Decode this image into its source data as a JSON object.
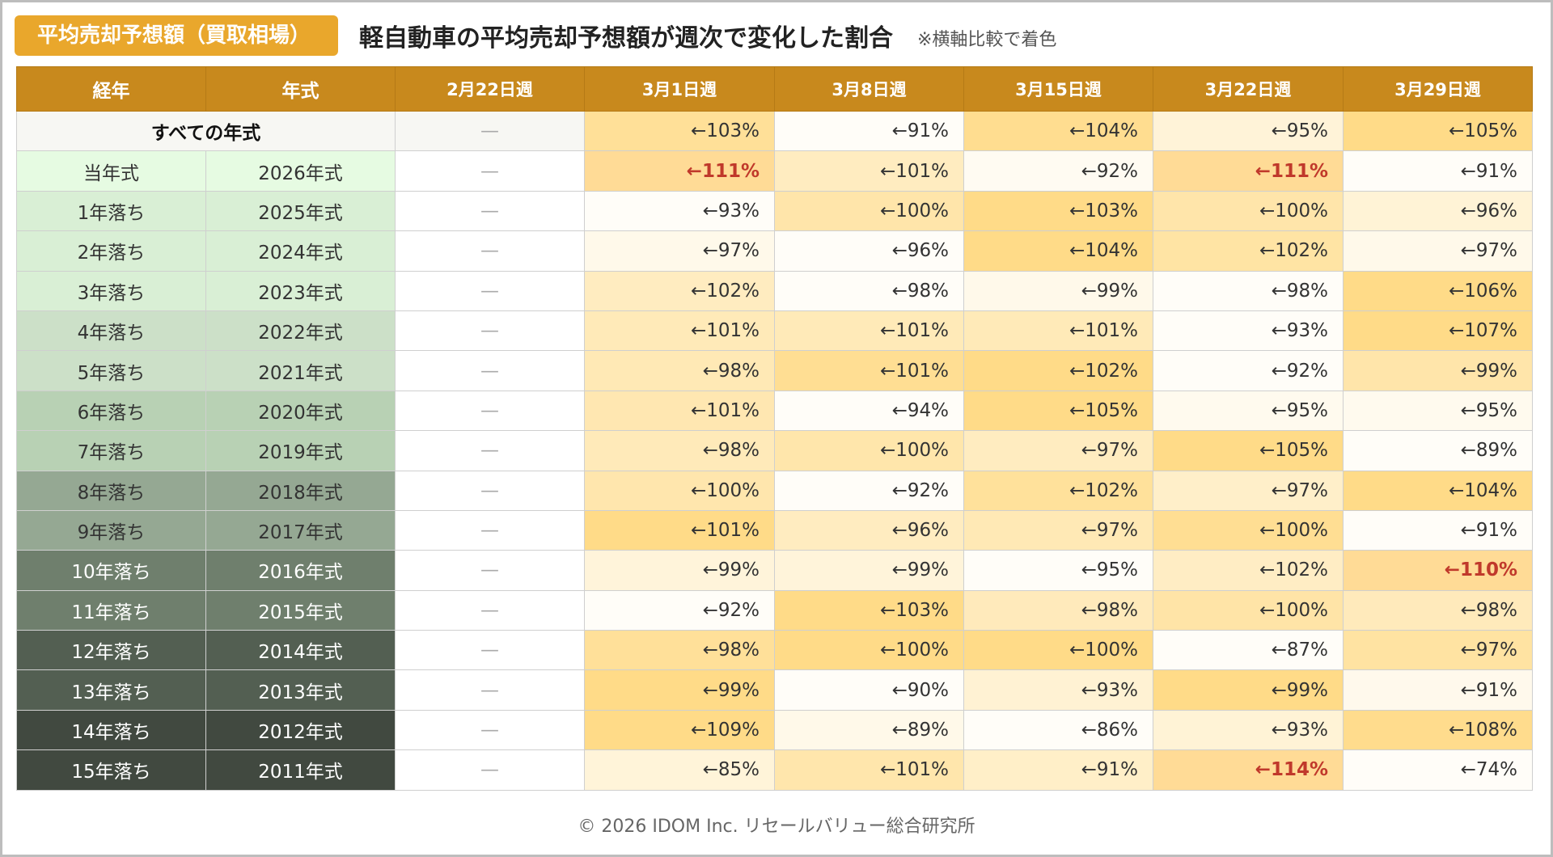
{
  "header": {
    "badge": "平均売却予想額（買取相場）",
    "title": "軽自動車の平均売却予想額が週次で変化した割合",
    "note": "※横軸比較で着色"
  },
  "footer": "© 2026 IDOM Inc. リセールバリュー総合研究所",
  "colors": {
    "header_bg": "#c8891d",
    "badge_bg": "#e9a72c",
    "highlight_text": "#c0392b"
  },
  "chart_data": {
    "type": "table",
    "columns": [
      "経年",
      "年式",
      "2月22日週",
      "3月1日週",
      "3月8日週",
      "3月15日週",
      "3月22日週",
      "3月29日週"
    ],
    "dash": "—",
    "arrow": "←",
    "rows": [
      {
        "age": "すべての年式",
        "year": "",
        "values": [
          103,
          91,
          104,
          95,
          105
        ]
      },
      {
        "age": "当年式",
        "year": "2026年式",
        "values": [
          111,
          101,
          92,
          111,
          91
        ]
      },
      {
        "age": "1年落ち",
        "year": "2025年式",
        "values": [
          93,
          100,
          103,
          100,
          96
        ]
      },
      {
        "age": "2年落ち",
        "year": "2024年式",
        "values": [
          97,
          96,
          104,
          102,
          97
        ]
      },
      {
        "age": "3年落ち",
        "year": "2023年式",
        "values": [
          102,
          98,
          99,
          98,
          106
        ]
      },
      {
        "age": "4年落ち",
        "year": "2022年式",
        "values": [
          101,
          101,
          101,
          93,
          107
        ]
      },
      {
        "age": "5年落ち",
        "year": "2021年式",
        "values": [
          98,
          101,
          102,
          92,
          99
        ]
      },
      {
        "age": "6年落ち",
        "year": "2020年式",
        "values": [
          101,
          94,
          105,
          95,
          95
        ]
      },
      {
        "age": "7年落ち",
        "year": "2019年式",
        "values": [
          98,
          100,
          97,
          105,
          89
        ]
      },
      {
        "age": "8年落ち",
        "year": "2018年式",
        "values": [
          100,
          92,
          102,
          97,
          104
        ]
      },
      {
        "age": "9年落ち",
        "year": "2017年式",
        "values": [
          101,
          96,
          97,
          100,
          91
        ]
      },
      {
        "age": "10年落ち",
        "year": "2016年式",
        "values": [
          99,
          99,
          95,
          102,
          110
        ]
      },
      {
        "age": "11年落ち",
        "year": "2015年式",
        "values": [
          92,
          103,
          98,
          100,
          98
        ]
      },
      {
        "age": "12年落ち",
        "year": "2014年式",
        "values": [
          98,
          100,
          100,
          87,
          97
        ]
      },
      {
        "age": "13年落ち",
        "year": "2013年式",
        "values": [
          99,
          90,
          93,
          99,
          91
        ]
      },
      {
        "age": "14年落ち",
        "year": "2012年式",
        "values": [
          109,
          89,
          86,
          93,
          108
        ]
      },
      {
        "age": "15年落ち",
        "year": "2011年式",
        "values": [
          85,
          101,
          91,
          114,
          74
        ]
      }
    ],
    "highlight_threshold": 110,
    "row_label_colors": [
      "#f7f7f3",
      "#e6fbe2",
      "#d9efd5",
      "#d9efd5",
      "#d9efd5",
      "#cce0c8",
      "#cce0c8",
      "#b8d1b4",
      "#b8d1b4",
      "#95a893",
      "#95a893",
      "#6f7f6d",
      "#6f7f6d",
      "#535f52",
      "#535f52",
      "#414940",
      "#414940"
    ]
  }
}
